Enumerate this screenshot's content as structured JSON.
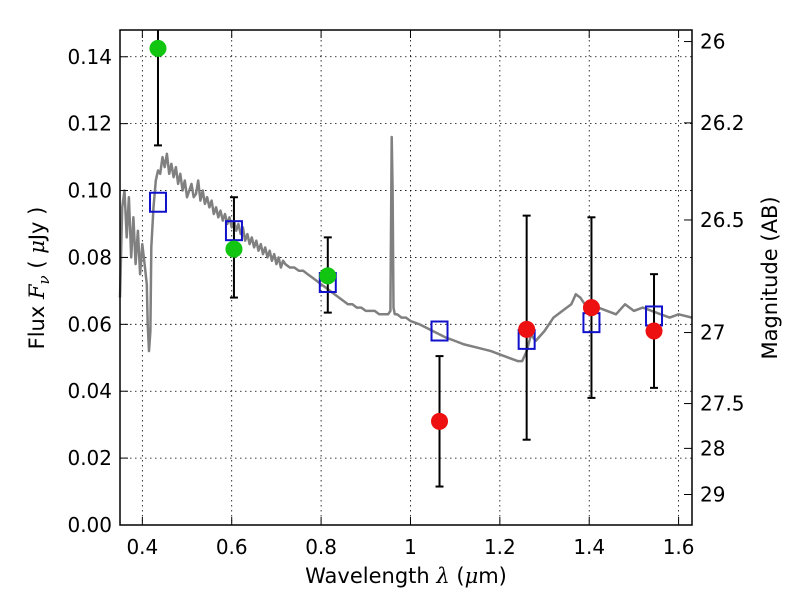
{
  "chart_data": {
    "type": "scatter",
    "title": "",
    "xlabel": {
      "prefix": "Wavelength  ",
      "sym": "λ",
      "suffix": " (",
      "mu": "μ",
      "unit": "m)"
    },
    "ylabel": {
      "prefix": "Flux  ",
      "sym": "F",
      "sub": "ν",
      "mid": "  ( ",
      "mu": "μ",
      "unit": "Jy )"
    },
    "y2label": "Magnitude (AB)",
    "xlim": [
      0.35,
      1.63
    ],
    "ylim": [
      0.0,
      0.148
    ],
    "grid": true,
    "x_ticks": [
      {
        "v": 0.4,
        "label": "0.4"
      },
      {
        "v": 0.6,
        "label": "0.6"
      },
      {
        "v": 0.8,
        "label": "0.8"
      },
      {
        "v": 1.0,
        "label": "1"
      },
      {
        "v": 1.2,
        "label": "1.2"
      },
      {
        "v": 1.4,
        "label": "1.4"
      },
      {
        "v": 1.6,
        "label": "1.6"
      }
    ],
    "y_ticks": [
      {
        "v": 0.0,
        "label": "0.00"
      },
      {
        "v": 0.02,
        "label": "0.02"
      },
      {
        "v": 0.04,
        "label": "0.04"
      },
      {
        "v": 0.06,
        "label": "0.06"
      },
      {
        "v": 0.08,
        "label": "0.08"
      },
      {
        "v": 0.1,
        "label": "0.10"
      },
      {
        "v": 0.12,
        "label": "0.12"
      },
      {
        "v": 0.14,
        "label": "0.14"
      }
    ],
    "y2_ticks": [
      {
        "mag": 26,
        "label": "26"
      },
      {
        "mag": 26.2,
        "label": "26.2"
      },
      {
        "mag": 26.5,
        "label": "26.5"
      },
      {
        "mag": 27,
        "label": "27"
      },
      {
        "mag": 27.5,
        "label": "27.5"
      },
      {
        "mag": 28,
        "label": "28"
      },
      {
        "mag": 29,
        "label": "29"
      }
    ],
    "model_spectrum": {
      "color": "#808080",
      "x": [
        0.35,
        0.355,
        0.36,
        0.365,
        0.37,
        0.375,
        0.38,
        0.385,
        0.39,
        0.395,
        0.4,
        0.405,
        0.41,
        0.412,
        0.415,
        0.418,
        0.42,
        0.425,
        0.43,
        0.435,
        0.44,
        0.445,
        0.45,
        0.455,
        0.46,
        0.465,
        0.47,
        0.475,
        0.48,
        0.485,
        0.49,
        0.495,
        0.5,
        0.505,
        0.51,
        0.515,
        0.52,
        0.525,
        0.53,
        0.535,
        0.54,
        0.545,
        0.55,
        0.555,
        0.56,
        0.565,
        0.57,
        0.575,
        0.58,
        0.585,
        0.59,
        0.595,
        0.6,
        0.605,
        0.61,
        0.615,
        0.62,
        0.625,
        0.63,
        0.635,
        0.64,
        0.645,
        0.65,
        0.655,
        0.66,
        0.665,
        0.67,
        0.675,
        0.68,
        0.685,
        0.69,
        0.695,
        0.7,
        0.705,
        0.71,
        0.715,
        0.72,
        0.73,
        0.74,
        0.75,
        0.76,
        0.77,
        0.78,
        0.79,
        0.8,
        0.81,
        0.82,
        0.83,
        0.84,
        0.85,
        0.86,
        0.87,
        0.88,
        0.89,
        0.9,
        0.91,
        0.92,
        0.93,
        0.94,
        0.95,
        0.955,
        0.958,
        0.96,
        0.962,
        0.965,
        0.97,
        0.98,
        0.99,
        1.0,
        1.02,
        1.05,
        1.08,
        1.1,
        1.12,
        1.15,
        1.18,
        1.2,
        1.22,
        1.24,
        1.25,
        1.26,
        1.27,
        1.28,
        1.3,
        1.32,
        1.34,
        1.36,
        1.37,
        1.38,
        1.39,
        1.4,
        1.42,
        1.44,
        1.46,
        1.48,
        1.5,
        1.52,
        1.54,
        1.56,
        1.58,
        1.6,
        1.63
      ],
      "y": [
        0.068,
        0.095,
        0.1,
        0.086,
        0.098,
        0.08,
        0.092,
        0.078,
        0.088,
        0.075,
        0.084,
        0.078,
        0.072,
        0.06,
        0.052,
        0.058,
        0.083,
        0.095,
        0.103,
        0.106,
        0.105,
        0.11,
        0.107,
        0.111,
        0.105,
        0.108,
        0.104,
        0.107,
        0.102,
        0.105,
        0.1,
        0.103,
        0.098,
        0.1,
        0.102,
        0.098,
        0.099,
        0.103,
        0.097,
        0.1,
        0.096,
        0.098,
        0.095,
        0.097,
        0.093,
        0.095,
        0.092,
        0.094,
        0.091,
        0.093,
        0.09,
        0.092,
        0.089,
        0.091,
        0.088,
        0.09,
        0.087,
        0.089,
        0.085,
        0.087,
        0.084,
        0.086,
        0.083,
        0.085,
        0.082,
        0.084,
        0.081,
        0.083,
        0.08,
        0.082,
        0.079,
        0.081,
        0.078,
        0.08,
        0.077,
        0.079,
        0.078,
        0.077,
        0.077,
        0.076,
        0.076,
        0.075,
        0.074,
        0.073,
        0.072,
        0.071,
        0.07,
        0.069,
        0.068,
        0.067,
        0.066,
        0.066,
        0.065,
        0.065,
        0.064,
        0.064,
        0.064,
        0.063,
        0.063,
        0.063,
        0.064,
        0.116,
        0.1,
        0.065,
        0.063,
        0.063,
        0.062,
        0.062,
        0.061,
        0.06,
        0.058,
        0.056,
        0.055,
        0.054,
        0.053,
        0.052,
        0.051,
        0.05,
        0.049,
        0.049,
        0.052,
        0.057,
        0.055,
        0.058,
        0.062,
        0.064,
        0.066,
        0.069,
        0.068,
        0.066,
        0.067,
        0.065,
        0.064,
        0.063,
        0.066,
        0.064,
        0.065,
        0.064,
        0.063,
        0.062,
        0.063,
        0.062
      ]
    },
    "series": [
      {
        "marker": "circle",
        "color": "#11c511",
        "points": [
          {
            "x": 0.435,
            "y": 0.1425,
            "yerr_lo": 0.1135,
            "yerr_hi": 0.148
          },
          {
            "x": 0.605,
            "y": 0.0825,
            "yerr_lo": 0.068,
            "yerr_hi": 0.098
          },
          {
            "x": 0.815,
            "y": 0.0745,
            "yerr_lo": 0.0635,
            "yerr_hi": 0.086
          }
        ]
      },
      {
        "marker": "circle",
        "color": "#ee1111",
        "points": [
          {
            "x": 1.065,
            "y": 0.031,
            "yerr_lo": 0.0115,
            "yerr_hi": 0.0505
          },
          {
            "x": 1.26,
            "y": 0.0585,
            "yerr_lo": 0.0255,
            "yerr_hi": 0.0925
          },
          {
            "x": 1.405,
            "y": 0.065,
            "yerr_lo": 0.038,
            "yerr_hi": 0.092
          },
          {
            "x": 1.545,
            "y": 0.058,
            "yerr_lo": 0.041,
            "yerr_hi": 0.075
          }
        ]
      },
      {
        "marker": "open-square",
        "color": "#1111cc",
        "points": [
          {
            "x": 0.435,
            "y": 0.0965
          },
          {
            "x": 0.605,
            "y": 0.088
          },
          {
            "x": 0.815,
            "y": 0.0725
          },
          {
            "x": 1.065,
            "y": 0.058
          },
          {
            "x": 1.26,
            "y": 0.0555
          },
          {
            "x": 1.405,
            "y": 0.0605
          },
          {
            "x": 1.545,
            "y": 0.0625
          }
        ]
      }
    ]
  }
}
